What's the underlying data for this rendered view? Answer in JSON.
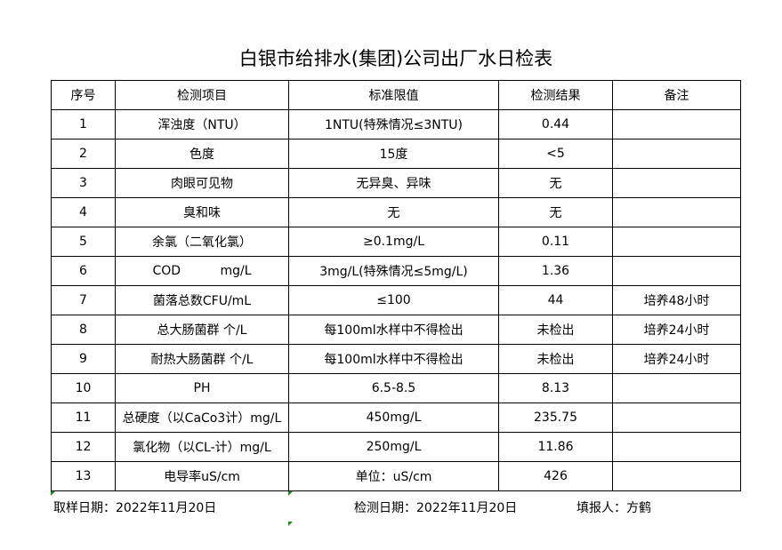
{
  "title": "白银市给排水(集团)公司出厂水日检表",
  "headers": [
    "序号",
    "检测项目",
    "标准限值",
    "检测结果",
    "备注"
  ],
  "rows": [
    [
      "1",
      "浑浊度（NTU）",
      "1NTU(特殊情况≤3NTU)",
      "0.44",
      ""
    ],
    [
      "2",
      "色度",
      "15度",
      "<5",
      ""
    ],
    [
      "3",
      "肉眼可见物",
      "无异臭、异味",
      "无",
      ""
    ],
    [
      "4",
      "臭和味",
      "无",
      "无",
      ""
    ],
    [
      "5",
      "余氯（二氧化氯）",
      "≥0.1mg/L",
      "0.11",
      ""
    ],
    [
      "6",
      "COD          mg/L",
      "3mg/L(特殊情况≤5mg/L)",
      "1.36",
      ""
    ],
    [
      "7",
      "菌落总数CFU/mL",
      "≤100",
      "44",
      "培养48小时"
    ],
    [
      "8",
      "总大肠菌群 个/L",
      "每100ml水样中不得检出",
      "未检出",
      "培养24小时"
    ],
    [
      "9",
      "耐热大肠菌群 个/L",
      "每100ml水样中不得检出",
      "未检出",
      "培养24小时"
    ],
    [
      "10",
      "PH",
      "6.5-8.5",
      "8.13",
      ""
    ],
    [
      "11",
      "总硬度（以CaCo3计）mg/L",
      "450mg/L",
      "235.75",
      ""
    ],
    [
      "12",
      "氯化物（以CL-计）mg/L",
      "250mg/L",
      "11.86",
      ""
    ],
    [
      "13",
      "电导率uS/cm",
      "单位：uS/cm",
      "426",
      ""
    ]
  ],
  "footer": {
    "sample_date": "取样日期：2022年11月20日",
    "test_date": "检测日期：2022年11月20日",
    "reporter": "填报人：方鹤"
  }
}
